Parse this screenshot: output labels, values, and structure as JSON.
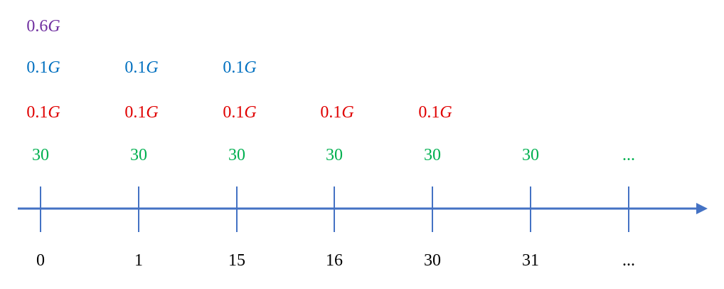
{
  "colors": {
    "axis": "#4472c4",
    "purple": "#7030a0",
    "blue": "#0070c0",
    "red": "#e00000",
    "green": "#00b050",
    "black": "#000000"
  },
  "timeline": {
    "ticks": [
      {
        "label": "0",
        "cashflow": "30",
        "red": {
          "coef": "0.1",
          "var": "G"
        },
        "blue": {
          "coef": "0.1",
          "var": "G"
        },
        "purple": {
          "coef": "0.6",
          "var": "G"
        }
      },
      {
        "label": "1",
        "cashflow": "30",
        "red": {
          "coef": "0.1",
          "var": "G"
        },
        "blue": {
          "coef": "0.1",
          "var": "G"
        }
      },
      {
        "label": "15",
        "cashflow": "30",
        "red": {
          "coef": "0.1",
          "var": "G"
        },
        "blue": {
          "coef": "0.1",
          "var": "G"
        }
      },
      {
        "label": "16",
        "cashflow": "30",
        "red": {
          "coef": "0.1",
          "var": "G"
        }
      },
      {
        "label": "30",
        "cashflow": "30",
        "red": {
          "coef": "0.1",
          "var": "G"
        }
      },
      {
        "label": "31",
        "cashflow": "30"
      },
      {
        "label": "...",
        "cashflow": "..."
      }
    ]
  }
}
